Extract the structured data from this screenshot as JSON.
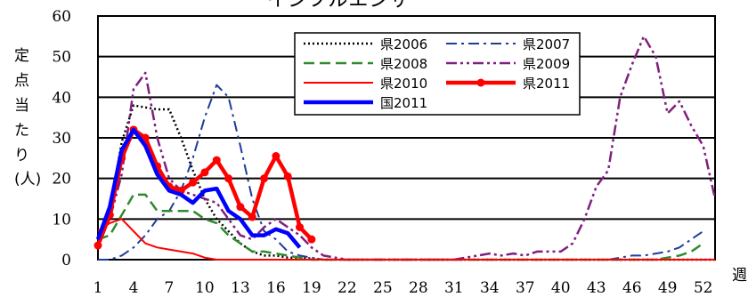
{
  "chart_data": {
    "type": "line",
    "title": "インフルエンザ",
    "ylabel": "定点当たり(人)",
    "xlabel": "週",
    "ylim": [
      0,
      60
    ],
    "yticks": [
      0,
      10,
      20,
      30,
      40,
      50,
      60
    ],
    "xlim": [
      1,
      53
    ],
    "xtick_labels": [
      "1",
      "4",
      "7",
      "10",
      "13",
      "16",
      "19",
      "22",
      "25",
      "28",
      "31",
      "34",
      "37",
      "40",
      "43",
      "46",
      "49",
      "52"
    ],
    "grid": "horizontal",
    "legend_position": "top-center",
    "series": [
      {
        "name": "県2006",
        "color": "#000000",
        "style": "dotted",
        "width": 2.5,
        "points": [
          [
            1,
            5
          ],
          [
            2,
            12
          ],
          [
            3,
            29
          ],
          [
            4,
            38
          ],
          [
            5,
            37.5
          ],
          [
            6,
            37
          ],
          [
            7,
            37
          ],
          [
            8,
            30
          ],
          [
            9,
            22
          ],
          [
            10,
            15
          ],
          [
            11,
            10
          ],
          [
            12,
            7
          ],
          [
            13,
            4
          ],
          [
            14,
            2
          ],
          [
            15,
            1
          ],
          [
            16,
            1
          ],
          [
            17,
            0.5
          ],
          [
            18,
            0.5
          ],
          [
            19,
            0.3
          ],
          [
            20,
            0
          ],
          [
            53,
            0
          ]
        ]
      },
      {
        "name": "県2007",
        "color": "#1f3c99",
        "style": "dashdot",
        "width": 2,
        "points": [
          [
            1,
            0
          ],
          [
            2,
            0
          ],
          [
            3,
            1
          ],
          [
            4,
            3
          ],
          [
            5,
            6
          ],
          [
            6,
            10
          ],
          [
            7,
            12
          ],
          [
            8,
            17
          ],
          [
            9,
            25
          ],
          [
            10,
            35
          ],
          [
            11,
            43
          ],
          [
            12,
            40
          ],
          [
            13,
            28
          ],
          [
            14,
            15
          ],
          [
            15,
            7
          ],
          [
            16,
            5
          ],
          [
            17,
            2
          ],
          [
            18,
            1
          ],
          [
            19,
            0.5
          ],
          [
            20,
            0
          ],
          [
            44,
            0
          ],
          [
            45,
            0.5
          ],
          [
            46,
            1
          ],
          [
            47,
            1
          ],
          [
            48,
            1.5
          ],
          [
            49,
            2
          ],
          [
            50,
            3
          ],
          [
            51,
            5
          ],
          [
            52,
            7
          ]
        ]
      },
      {
        "name": "県2008",
        "color": "#2e8b2e",
        "style": "dashed",
        "width": 2.5,
        "points": [
          [
            1,
            5
          ],
          [
            2,
            6
          ],
          [
            3,
            11
          ],
          [
            4,
            16
          ],
          [
            5,
            16
          ],
          [
            6,
            12
          ],
          [
            7,
            12
          ],
          [
            8,
            12
          ],
          [
            9,
            12
          ],
          [
            10,
            10
          ],
          [
            11,
            9
          ],
          [
            12,
            6
          ],
          [
            13,
            4
          ],
          [
            14,
            2
          ],
          [
            15,
            2
          ],
          [
            16,
            1.5
          ],
          [
            17,
            1
          ],
          [
            18,
            0.5
          ],
          [
            19,
            0
          ],
          [
            48,
            0
          ],
          [
            49,
            0.5
          ],
          [
            50,
            1
          ],
          [
            51,
            2
          ],
          [
            52,
            4
          ]
        ]
      },
      {
        "name": "県2009",
        "color": "#7f1f7f",
        "style": "dashdotdot",
        "width": 2.5,
        "points": [
          [
            1,
            5
          ],
          [
            2,
            10
          ],
          [
            3,
            21
          ],
          [
            4,
            42
          ],
          [
            5,
            46
          ],
          [
            6,
            30
          ],
          [
            7,
            20
          ],
          [
            8,
            17
          ],
          [
            9,
            16
          ],
          [
            10,
            15
          ],
          [
            11,
            14
          ],
          [
            12,
            10
          ],
          [
            13,
            6
          ],
          [
            14,
            5
          ],
          [
            15,
            8
          ],
          [
            16,
            10
          ],
          [
            17,
            8
          ],
          [
            18,
            6
          ],
          [
            19,
            3
          ],
          [
            20,
            1
          ],
          [
            21,
            0.5
          ],
          [
            22,
            0
          ],
          [
            31,
            0
          ],
          [
            32,
            0.5
          ],
          [
            33,
            1
          ],
          [
            34,
            1.5
          ],
          [
            35,
            1
          ],
          [
            36,
            1.5
          ],
          [
            37,
            1
          ],
          [
            38,
            2
          ],
          [
            39,
            2
          ],
          [
            40,
            2
          ],
          [
            41,
            4
          ],
          [
            42,
            10
          ],
          [
            43,
            18
          ],
          [
            44,
            22
          ],
          [
            45,
            40
          ],
          [
            46,
            48
          ],
          [
            47,
            55
          ],
          [
            48,
            50
          ],
          [
            49,
            36
          ],
          [
            50,
            39
          ],
          [
            51,
            33
          ],
          [
            52,
            28
          ],
          [
            53,
            15
          ]
        ]
      },
      {
        "name": "県2010",
        "color": "#ff0000",
        "style": "solid",
        "width": 2,
        "points": [
          [
            1,
            7
          ],
          [
            2,
            9
          ],
          [
            3,
            10
          ],
          [
            4,
            7
          ],
          [
            5,
            4
          ],
          [
            6,
            3
          ],
          [
            7,
            2.5
          ],
          [
            8,
            2
          ],
          [
            9,
            1.5
          ],
          [
            10,
            0.5
          ],
          [
            11,
            0
          ],
          [
            53,
            0
          ]
        ]
      },
      {
        "name": "県2011",
        "color": "#ff0000",
        "style": "solid",
        "width": 4.5,
        "markers": true,
        "points": [
          [
            1,
            3.5
          ],
          [
            2,
            11
          ],
          [
            3,
            25
          ],
          [
            4,
            32
          ],
          [
            5,
            30
          ],
          [
            6,
            23
          ],
          [
            7,
            18
          ],
          [
            8,
            17
          ],
          [
            9,
            19
          ],
          [
            10,
            21.5
          ],
          [
            11,
            24.5
          ],
          [
            12,
            20
          ],
          [
            13,
            13
          ],
          [
            14,
            10.5
          ],
          [
            15,
            20
          ],
          [
            16,
            25.5
          ],
          [
            17,
            20.5
          ],
          [
            18,
            8
          ],
          [
            19,
            5
          ]
        ]
      },
      {
        "name": "国2011",
        "color": "#0000ff",
        "style": "solid",
        "width": 4.5,
        "points": [
          [
            1,
            5
          ],
          [
            2,
            13
          ],
          [
            3,
            27
          ],
          [
            4,
            32
          ],
          [
            5,
            28
          ],
          [
            6,
            21
          ],
          [
            7,
            17
          ],
          [
            8,
            16
          ],
          [
            9,
            14
          ],
          [
            10,
            17
          ],
          [
            11,
            17.5
          ],
          [
            12,
            12
          ],
          [
            13,
            10
          ],
          [
            14,
            6
          ],
          [
            15,
            6
          ],
          [
            16,
            7.5
          ],
          [
            17,
            6.5
          ],
          [
            18,
            3
          ]
        ]
      }
    ]
  }
}
